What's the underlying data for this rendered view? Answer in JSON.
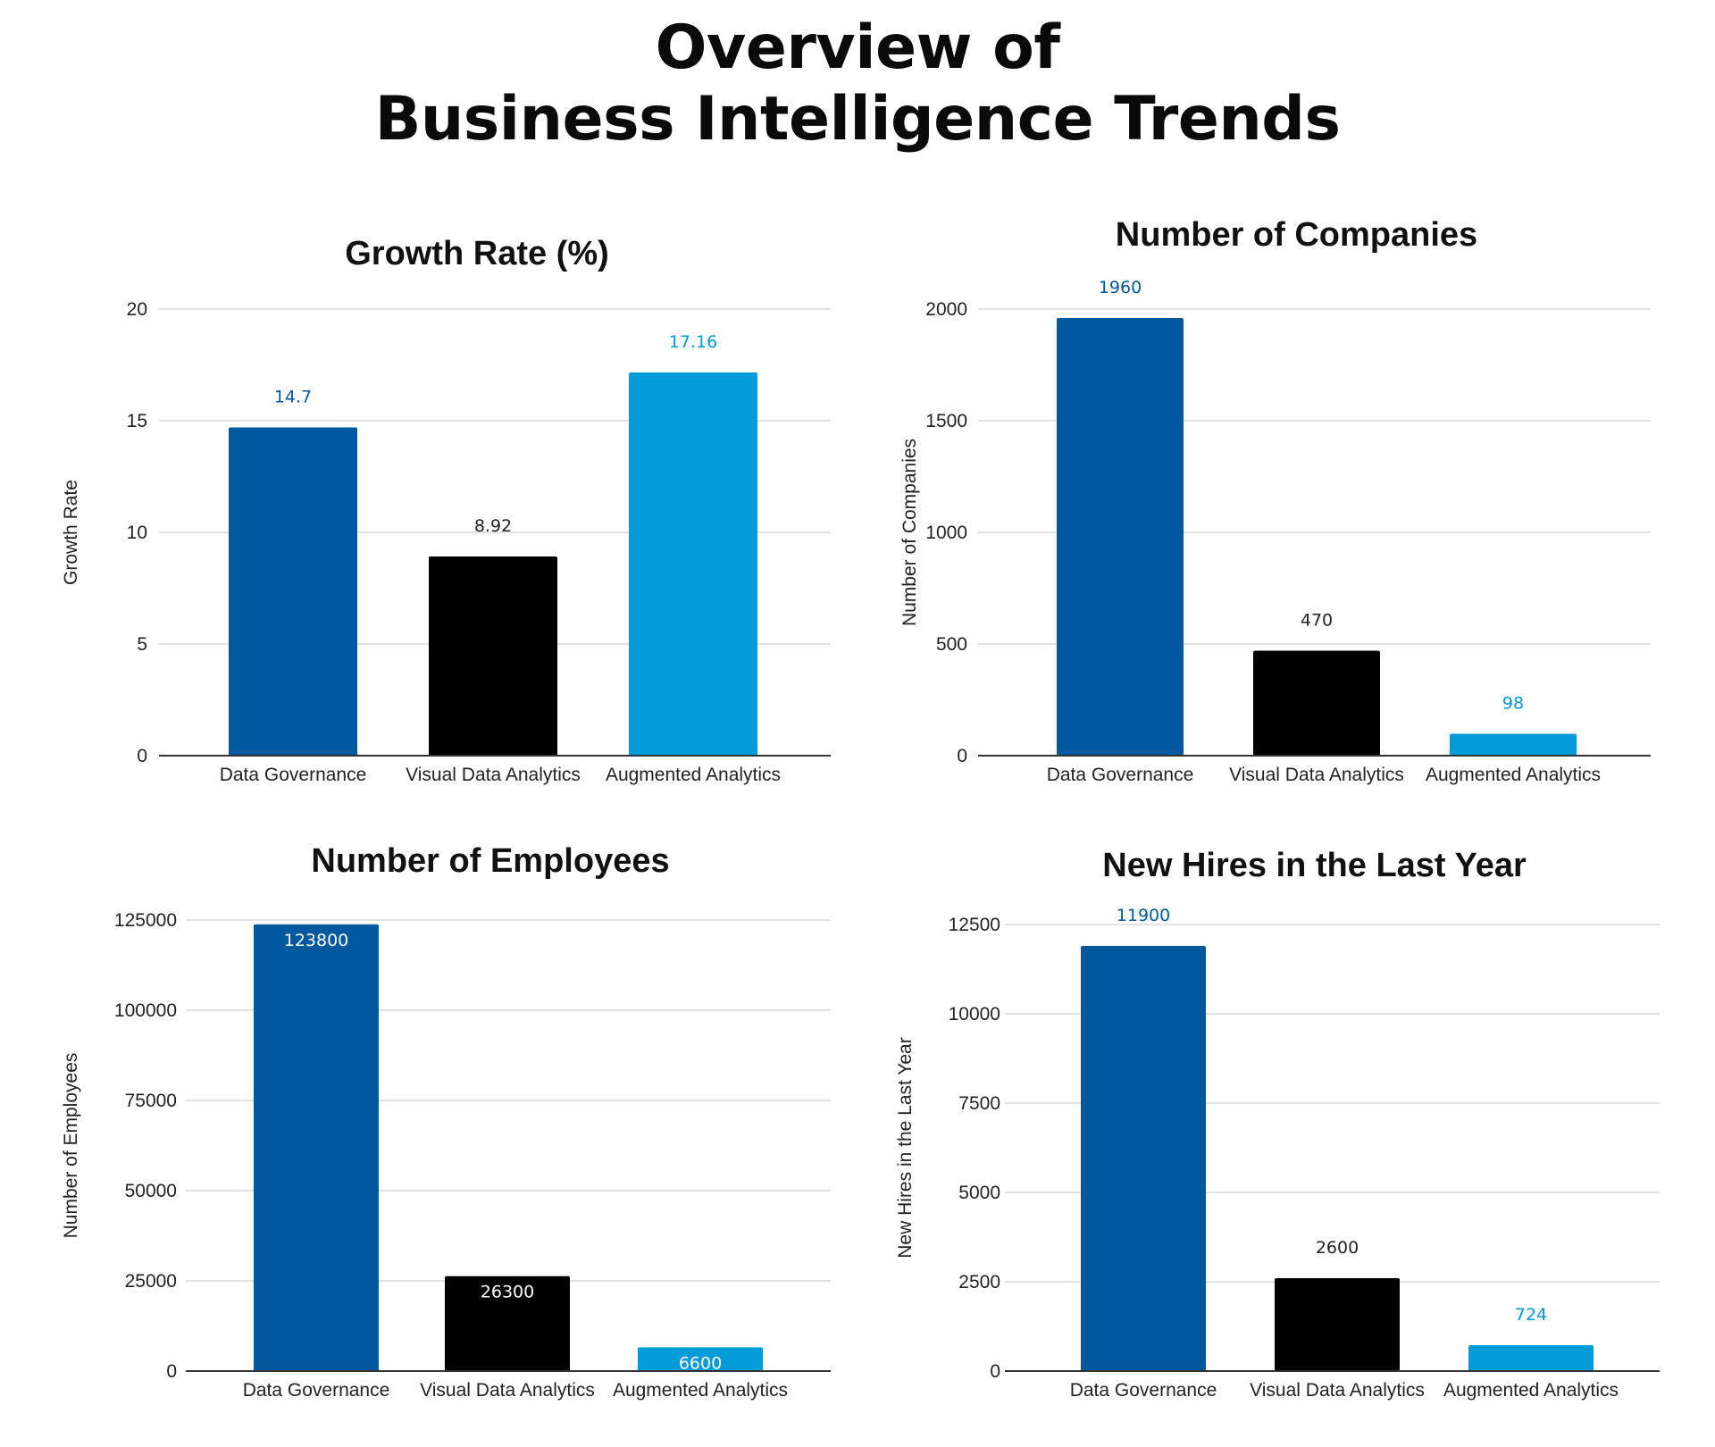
{
  "page": {
    "title_line1": "Overview of",
    "title_line2": "Business Intelligence Trends"
  },
  "colors": {
    "data_governance": "#02589f",
    "visual_data_analytics": "#000000",
    "augmented_analytics": "#039bd8",
    "grid": "#d9d9d9"
  },
  "chart_data": [
    {
      "type": "bar",
      "title": "Growth Rate (%)",
      "xlabel": "",
      "ylabel": "Growth Rate",
      "categories": [
        "Data Governance",
        "Visual Data Analytics",
        "Augmented Analytics"
      ],
      "values": [
        14.7,
        8.92,
        17.16
      ],
      "value_labels": [
        "14.7",
        "8.92",
        "17.16"
      ],
      "ylim": [
        0,
        20
      ],
      "yticks": [
        0,
        5,
        10,
        15,
        20
      ],
      "bar_colors": [
        "#02589f",
        "#000000",
        "#039bd8"
      ],
      "grid": true,
      "legend": "none"
    },
    {
      "type": "bar",
      "title": "Number of Companies",
      "xlabel": "",
      "ylabel": "Number of Companies",
      "categories": [
        "Data Governance",
        "Visual Data Analytics",
        "Augmented Analytics"
      ],
      "values": [
        1960,
        470,
        98
      ],
      "value_labels": [
        "1960",
        "470",
        "98"
      ],
      "ylim": [
        0,
        2000
      ],
      "yticks": [
        0,
        500,
        1000,
        1500,
        2000
      ],
      "bar_colors": [
        "#02589f",
        "#000000",
        "#039bd8"
      ],
      "grid": true,
      "legend": "none"
    },
    {
      "type": "bar",
      "title": "Number of Employees",
      "xlabel": "",
      "ylabel": "Number of Employees",
      "categories": [
        "Data Governance",
        "Visual Data Analytics",
        "Augmented Analytics"
      ],
      "values": [
        123800,
        26300,
        6600
      ],
      "value_labels": [
        "123800",
        "26300",
        "6600"
      ],
      "ylim": [
        0,
        125000
      ],
      "yticks": [
        0,
        25000,
        50000,
        75000,
        100000,
        125000
      ],
      "bar_colors": [
        "#02589f",
        "#000000",
        "#039bd8"
      ],
      "grid": true,
      "legend": "none"
    },
    {
      "type": "bar",
      "title": "New Hires in the Last Year",
      "xlabel": "",
      "ylabel": "New Hires in the Last Year",
      "categories": [
        "Data Governance",
        "Visual Data Analytics",
        "Augmented Analytics"
      ],
      "values": [
        11900,
        2600,
        724
      ],
      "value_labels": [
        "11900",
        "2600",
        "724"
      ],
      "ylim": [
        0,
        12500
      ],
      "yticks": [
        0,
        2500,
        5000,
        7500,
        10000,
        12500
      ],
      "bar_colors": [
        "#02589f",
        "#000000",
        "#039bd8"
      ],
      "grid": true,
      "legend": "none"
    }
  ]
}
